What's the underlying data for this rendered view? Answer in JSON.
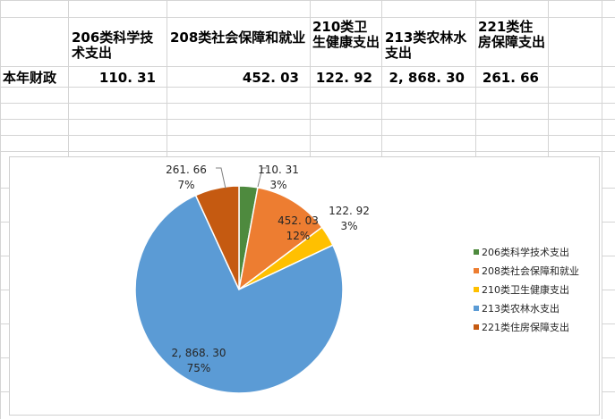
{
  "spreadsheet": {
    "headers": [
      "206类科学技术支出",
      "208类社会保障和就业",
      "210类卫生健康支出",
      "213类农林水支出",
      "221类住房保障支出"
    ],
    "row_label": "本年财政",
    "values": [
      "110. 31",
      "452. 03",
      "122. 92",
      "2, 868. 30",
      "261. 66"
    ]
  },
  "chart_data": {
    "type": "pie",
    "title": "",
    "categories": [
      "206类科学技术支出",
      "208类社会保障和就业",
      "210类卫生健康支出",
      "213类农林水支出",
      "221类住房保障支出"
    ],
    "values": [
      110.31,
      452.03,
      122.92,
      2868.3,
      261.66
    ],
    "value_labels": [
      "110. 31",
      "452. 03",
      "122. 92",
      "2, 868. 30",
      "261. 66"
    ],
    "percent_labels": [
      "3%",
      "12%",
      "3%",
      "75%",
      "7%"
    ],
    "colors": [
      "#4e8a3e",
      "#ed7d31",
      "#ffc000",
      "#5b9bd5",
      "#c55a11"
    ],
    "legend_position": "right"
  }
}
